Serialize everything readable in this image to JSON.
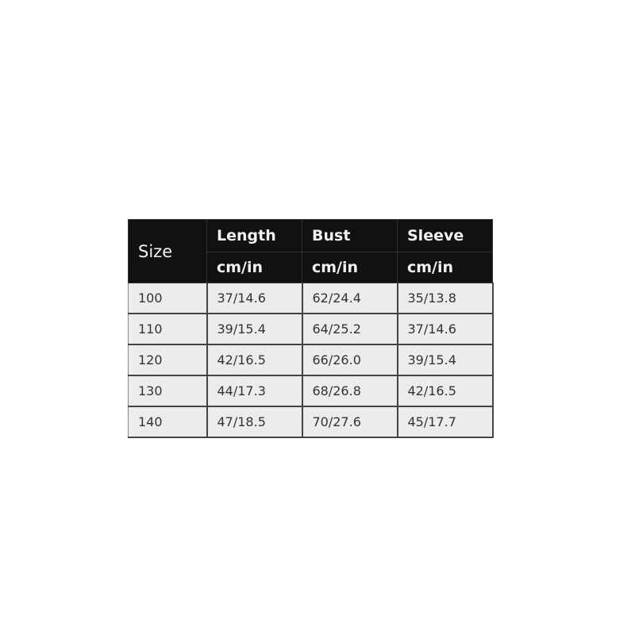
{
  "table": {
    "size_header": "Size",
    "columns": [
      {
        "label": "Length",
        "unit": "cm/in"
      },
      {
        "label": "Bust",
        "unit": "cm/in"
      },
      {
        "label": "Sleeve",
        "unit": "cm/in"
      }
    ],
    "rows": [
      [
        "100",
        "37/14.6",
        "62/24.4",
        "35/13.8"
      ],
      [
        "110",
        "39/15.4",
        "64/25.2",
        "37/14.6"
      ],
      [
        "120",
        "42/16.5",
        "66/26.0",
        "39/15.4"
      ],
      [
        "130",
        "44/17.3",
        "68/26.8",
        "42/16.5"
      ],
      [
        "140",
        "47/18.5",
        "70/27.6",
        "45/17.7"
      ]
    ]
  }
}
